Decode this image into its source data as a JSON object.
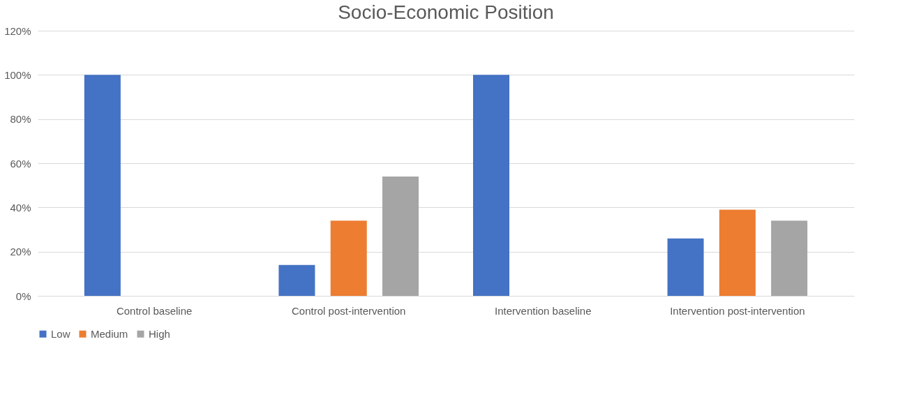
{
  "chart_data": {
    "type": "bar",
    "title": "Socio-Economic Position",
    "categories": [
      "Control baseline",
      "Control post-intervention",
      "Intervention baseline",
      "Intervention post-intervention"
    ],
    "series": [
      {
        "name": "Low",
        "color": "#4472c4",
        "values": [
          100,
          14,
          100,
          26
        ]
      },
      {
        "name": "Medium",
        "color": "#ed7d31",
        "values": [
          0,
          34,
          0,
          39
        ]
      },
      {
        "name": "High",
        "color": "#a5a5a5",
        "values": [
          0,
          54,
          0,
          34
        ]
      }
    ],
    "ylim": [
      0,
      120
    ],
    "yticks": [
      {
        "value": 0,
        "label": "0%"
      },
      {
        "value": 20,
        "label": "20%"
      },
      {
        "value": 40,
        "label": "40%"
      },
      {
        "value": 60,
        "label": "60%"
      },
      {
        "value": 80,
        "label": "80%"
      },
      {
        "value": 100,
        "label": "100%"
      },
      {
        "value": 120,
        "label": "120%"
      }
    ],
    "grid": "y",
    "legend": "bottom"
  }
}
